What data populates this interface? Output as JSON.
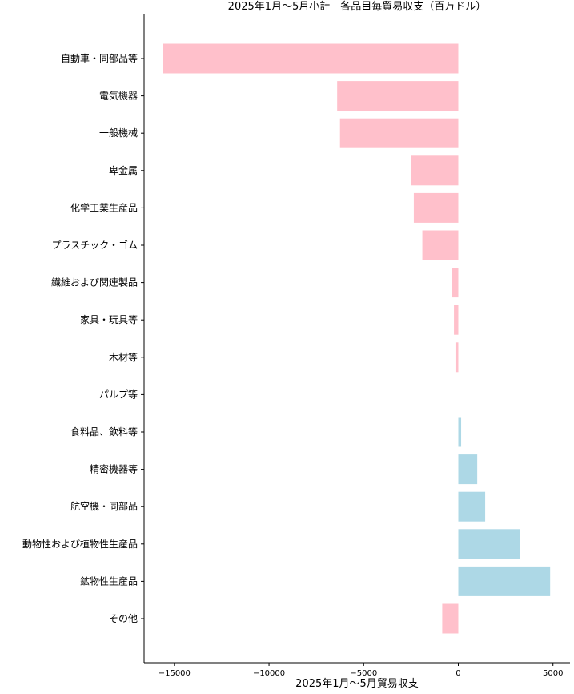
{
  "chart_data": {
    "type": "bar",
    "orientation": "horizontal",
    "title": "2025年1月～5月小計　各品目毎貿易収支（百万ドル）",
    "xlabel": "2025年1月～5月貿易収支",
    "ylabel": "",
    "xlim": [
      -16600,
      5900
    ],
    "xticks": [
      -15000,
      -10000,
      -5000,
      0,
      5000
    ],
    "xtick_labels": [
      "−15000",
      "−10000",
      "−5000",
      "0",
      "5000"
    ],
    "grid": false,
    "legend": "none",
    "colors": {
      "negative": "#ffc0cb",
      "positive": "#add8e6"
    },
    "categories": [
      "自動車・同部品等",
      "電気機器",
      "一般機械",
      "卑金属",
      "化学工業生産品",
      "プラスチック・ゴム",
      "繊維および関連製品",
      "家具・玩具等",
      "木材等",
      "パルプ等",
      "食料品、飲料等",
      "精密機器等",
      "航空機・同部品",
      "動物性および植物性生産品",
      "鉱物性生産品",
      "その他"
    ],
    "values": [
      -15600,
      -6400,
      -6250,
      -2500,
      -2350,
      -1900,
      -320,
      -230,
      -150,
      0,
      150,
      1000,
      1420,
      3250,
      4850,
      -850
    ]
  }
}
